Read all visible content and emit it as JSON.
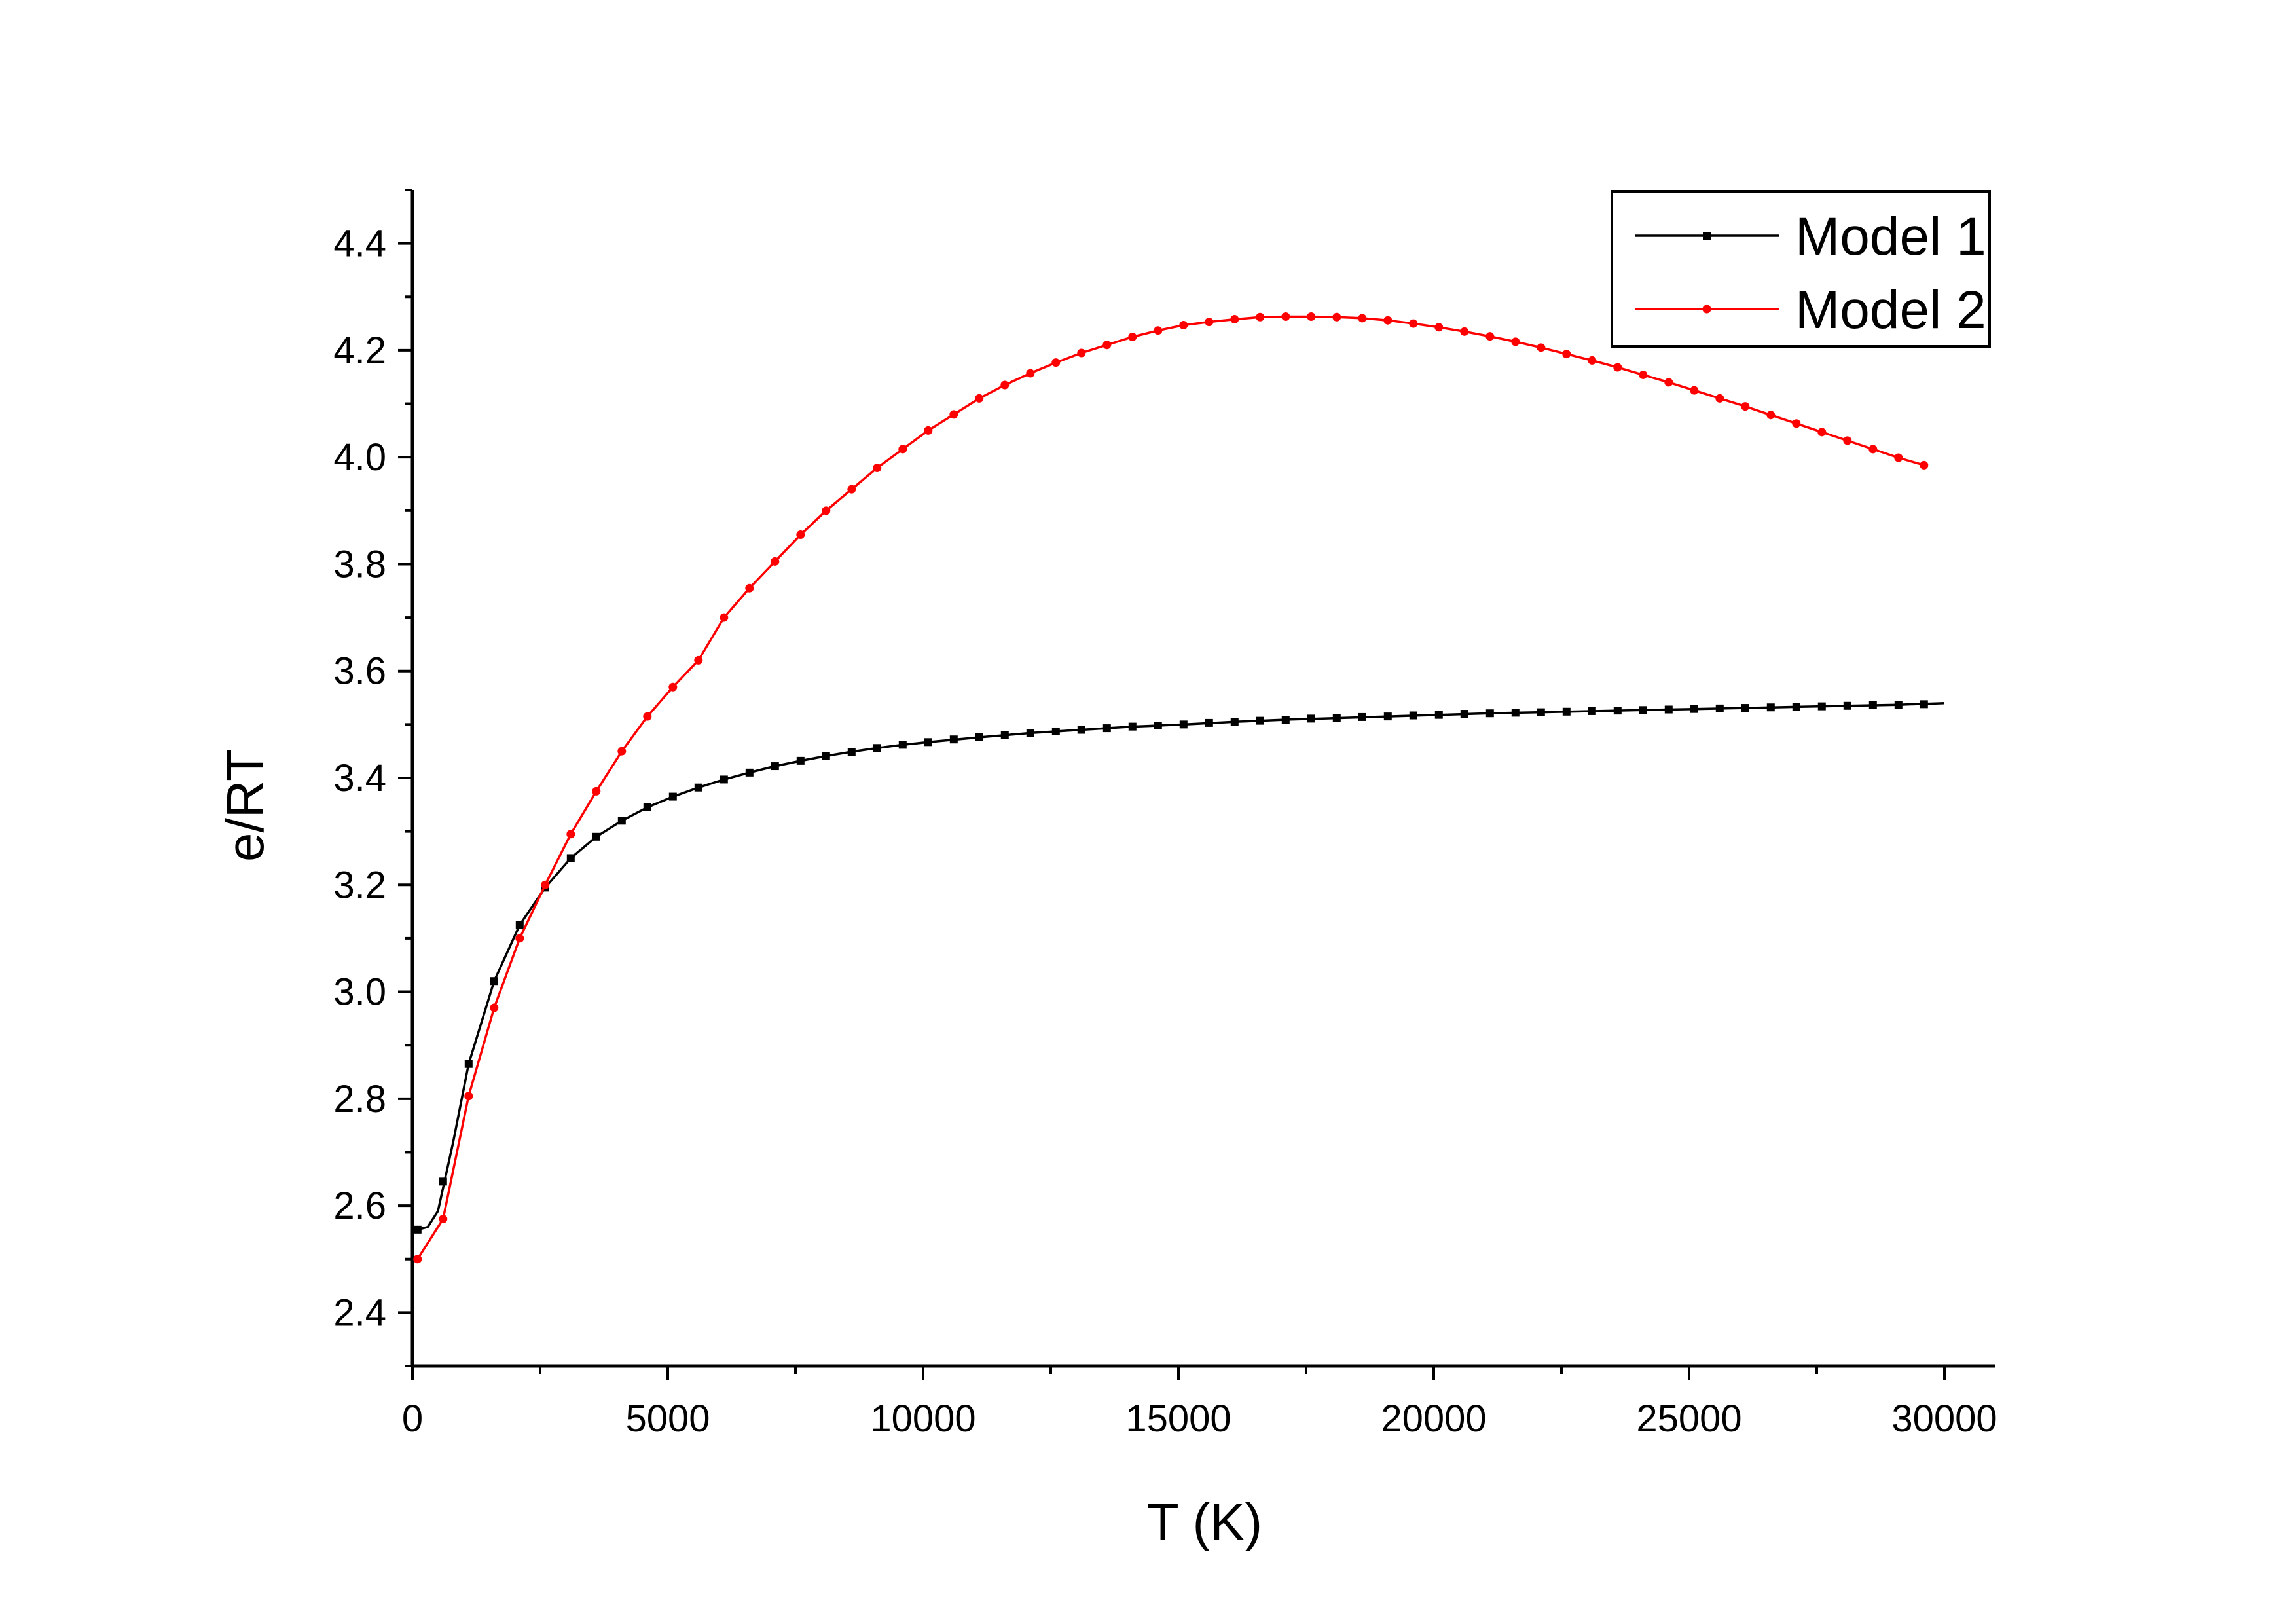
{
  "chart_data": {
    "type": "line",
    "xlabel": "T (K)",
    "ylabel": "e/RT",
    "xlim": [
      0,
      31000
    ],
    "ylim": [
      2.3,
      4.5
    ],
    "xticks": [
      0,
      5000,
      10000,
      15000,
      20000,
      25000,
      30000
    ],
    "xtick_labels": [
      "0",
      "5000",
      "10000",
      "15000",
      "20000",
      "25000",
      "30000"
    ],
    "yticks": [
      2.4,
      2.6,
      2.8,
      3.0,
      3.2,
      3.4,
      3.6,
      3.8,
      4.0,
      4.2,
      4.4
    ],
    "ytick_labels": [
      "2.4",
      "2.6",
      "2.8",
      "3.0",
      "3.2",
      "3.4",
      "3.6",
      "3.8",
      "4.0",
      "4.2",
      "4.4"
    ],
    "grid": false,
    "legend_position": "top-right",
    "series": [
      {
        "name": "Model 1",
        "color": "#000000",
        "marker": "square",
        "x": [
          100,
          600,
          1100,
          1600,
          2100,
          2600,
          3100,
          3600,
          4100,
          4600,
          5100,
          5600,
          6100,
          6600,
          7100,
          7600,
          8100,
          8600,
          9100,
          9600,
          10100,
          10600,
          11100,
          11600,
          12100,
          12600,
          13100,
          13600,
          14100,
          14600,
          15100,
          15600,
          16100,
          16600,
          17100,
          17600,
          18100,
          18600,
          19100,
          19600,
          20100,
          20600,
          21100,
          21600,
          22100,
          22600,
          23100,
          23600,
          24100,
          24600,
          25100,
          25600,
          26100,
          26600,
          27100,
          27600,
          28100,
          28600,
          29100,
          29600
        ],
        "y": [
          2.555,
          2.645,
          2.865,
          3.02,
          3.125,
          3.195,
          3.25,
          3.29,
          3.32,
          3.345,
          3.365,
          3.382,
          3.397,
          3.41,
          3.422,
          3.432,
          3.441,
          3.449,
          3.456,
          3.462,
          3.467,
          3.472,
          3.476,
          3.48,
          3.484,
          3.487,
          3.49,
          3.493,
          3.496,
          3.498,
          3.5,
          3.503,
          3.505,
          3.507,
          3.509,
          3.511,
          3.512,
          3.514,
          3.515,
          3.517,
          3.518,
          3.52,
          3.521,
          3.522,
          3.523,
          3.524,
          3.525,
          3.526,
          3.527,
          3.528,
          3.529,
          3.53,
          3.531,
          3.532,
          3.533,
          3.534,
          3.535,
          3.536,
          3.537,
          3.538
        ],
        "line_x": [
          0,
          100,
          300,
          500,
          800,
          1100,
          1600,
          2100,
          2600,
          3100,
          3600,
          4100,
          4600,
          5100,
          5600,
          6100,
          6600,
          7100,
          7600,
          8100,
          8600,
          9100,
          9600,
          10100,
          11100,
          12100,
          13100,
          14100,
          15100,
          16100,
          17100,
          18100,
          19100,
          20100,
          21100,
          22100,
          23100,
          24100,
          25100,
          26100,
          27100,
          28100,
          29100,
          30000
        ],
        "line_y": [
          2.555,
          2.555,
          2.56,
          2.59,
          2.72,
          2.865,
          3.02,
          3.125,
          3.195,
          3.25,
          3.29,
          3.32,
          3.345,
          3.365,
          3.382,
          3.397,
          3.41,
          3.422,
          3.432,
          3.441,
          3.449,
          3.456,
          3.462,
          3.467,
          3.476,
          3.484,
          3.49,
          3.496,
          3.5,
          3.505,
          3.509,
          3.512,
          3.515,
          3.518,
          3.521,
          3.523,
          3.525,
          3.527,
          3.529,
          3.531,
          3.533,
          3.535,
          3.537,
          3.54
        ]
      },
      {
        "name": "Model 2",
        "color": "#ff0000",
        "marker": "circle",
        "x": [
          100,
          600,
          1100,
          1600,
          2100,
          2600,
          3100,
          3600,
          4100,
          4600,
          5100,
          5600,
          6100,
          6600,
          7100,
          7600,
          8100,
          8600,
          9100,
          9600,
          10100,
          10600,
          11100,
          11600,
          12100,
          12600,
          13100,
          13600,
          14100,
          14600,
          15100,
          15600,
          16100,
          16600,
          17100,
          17600,
          18100,
          18600,
          19100,
          19600,
          20100,
          20600,
          21100,
          21600,
          22100,
          22600,
          23100,
          23600,
          24100,
          24600,
          25100,
          25600,
          26100,
          26600,
          27100,
          27600,
          28100,
          28600,
          29100,
          29600
        ],
        "y": [
          2.5,
          2.575,
          2.805,
          2.97,
          3.1,
          3.2,
          3.295,
          3.375,
          3.45,
          3.515,
          3.57,
          3.62,
          3.7,
          3.755,
          3.805,
          3.855,
          3.9,
          3.94,
          3.98,
          4.015,
          4.05,
          4.08,
          4.11,
          4.135,
          4.157,
          4.177,
          4.195,
          4.21,
          4.225,
          4.237,
          4.247,
          4.253,
          4.258,
          4.262,
          4.263,
          4.263,
          4.262,
          4.26,
          4.256,
          4.25,
          4.243,
          4.235,
          4.226,
          4.216,
          4.205,
          4.193,
          4.181,
          4.168,
          4.154,
          4.14,
          4.125,
          4.11,
          4.095,
          4.079,
          4.063,
          4.047,
          4.031,
          4.015,
          3.999,
          3.985
        ]
      }
    ]
  }
}
